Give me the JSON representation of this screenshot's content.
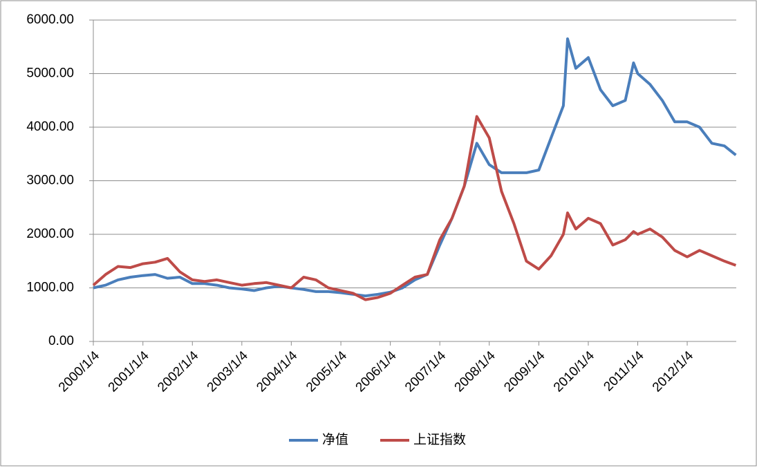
{
  "chart_data": {
    "type": "line",
    "x": [
      "2000/1/4",
      "2000/4/4",
      "2000/7/4",
      "2000/10/4",
      "2001/1/4",
      "2001/4/4",
      "2001/7/4",
      "2001/10/4",
      "2002/1/4",
      "2002/4/4",
      "2002/7/4",
      "2002/10/4",
      "2003/1/4",
      "2003/4/4",
      "2003/7/4",
      "2003/10/4",
      "2004/1/4",
      "2004/4/4",
      "2004/7/4",
      "2004/10/4",
      "2005/1/4",
      "2005/4/4",
      "2005/7/4",
      "2005/10/4",
      "2006/1/4",
      "2006/4/4",
      "2006/7/4",
      "2006/10/4",
      "2007/1/4",
      "2007/4/4",
      "2007/7/4",
      "2007/10/4",
      "2008/1/4",
      "2008/4/4",
      "2008/7/4",
      "2008/10/4",
      "2009/1/4",
      "2009/4/4",
      "2009/7/4",
      "2009/8/4",
      "2009/10/4",
      "2010/1/4",
      "2010/4/4",
      "2010/7/4",
      "2010/10/4",
      "2010/12/4",
      "2011/1/4",
      "2011/4/4",
      "2011/7/4",
      "2011/10/4",
      "2012/1/4",
      "2012/4/4",
      "2012/7/4",
      "2012/10/4",
      "2012/12/28"
    ],
    "series": [
      {
        "name": "净值",
        "color": "#4a7ebb",
        "values": [
          1000,
          1050,
          1150,
          1200,
          1230,
          1250,
          1180,
          1200,
          1080,
          1080,
          1050,
          1000,
          980,
          950,
          1000,
          1030,
          1000,
          970,
          930,
          930,
          910,
          880,
          850,
          880,
          920,
          1000,
          1150,
          1250,
          1800,
          2300,
          2900,
          3700,
          3300,
          3150,
          3150,
          3150,
          3200,
          3800,
          4400,
          5650,
          5100,
          5300,
          4700,
          4400,
          4500,
          5200,
          5000,
          4800,
          4500,
          4100,
          4100,
          4000,
          3700,
          3650,
          3480
        ]
      },
      {
        "name": "上证指数",
        "color": "#be4b48",
        "values": [
          1050,
          1250,
          1400,
          1380,
          1450,
          1480,
          1550,
          1300,
          1150,
          1120,
          1150,
          1100,
          1050,
          1080,
          1100,
          1050,
          1000,
          1200,
          1150,
          1000,
          950,
          900,
          780,
          820,
          900,
          1050,
          1200,
          1250,
          1900,
          2300,
          2900,
          4200,
          3800,
          2800,
          2200,
          1500,
          1350,
          1600,
          2000,
          2400,
          2100,
          2300,
          2200,
          1800,
          1900,
          2050,
          2000,
          2100,
          1950,
          1700,
          1580,
          1700,
          1600,
          1500,
          1420
        ]
      }
    ],
    "xlim": [
      "2000/1/4",
      "2012/12/31"
    ],
    "xticks": [
      "2000/1/4",
      "2001/1/4",
      "2002/1/4",
      "2003/1/4",
      "2004/1/4",
      "2005/1/4",
      "2006/1/4",
      "2007/1/4",
      "2008/1/4",
      "2009/1/4",
      "2010/1/4",
      "2011/1/4",
      "2012/1/4"
    ],
    "ylim": [
      0,
      6000
    ],
    "yticks": [
      {
        "value": 0,
        "label": "0.00"
      },
      {
        "value": 1000,
        "label": "1000.00"
      },
      {
        "value": 2000,
        "label": "2000.00"
      },
      {
        "value": 3000,
        "label": "3000.00"
      },
      {
        "value": 4000,
        "label": "4000.00"
      },
      {
        "value": 5000,
        "label": "5000.00"
      },
      {
        "value": 6000,
        "label": "6000.00"
      }
    ],
    "grid": true,
    "legend": "bottom"
  }
}
